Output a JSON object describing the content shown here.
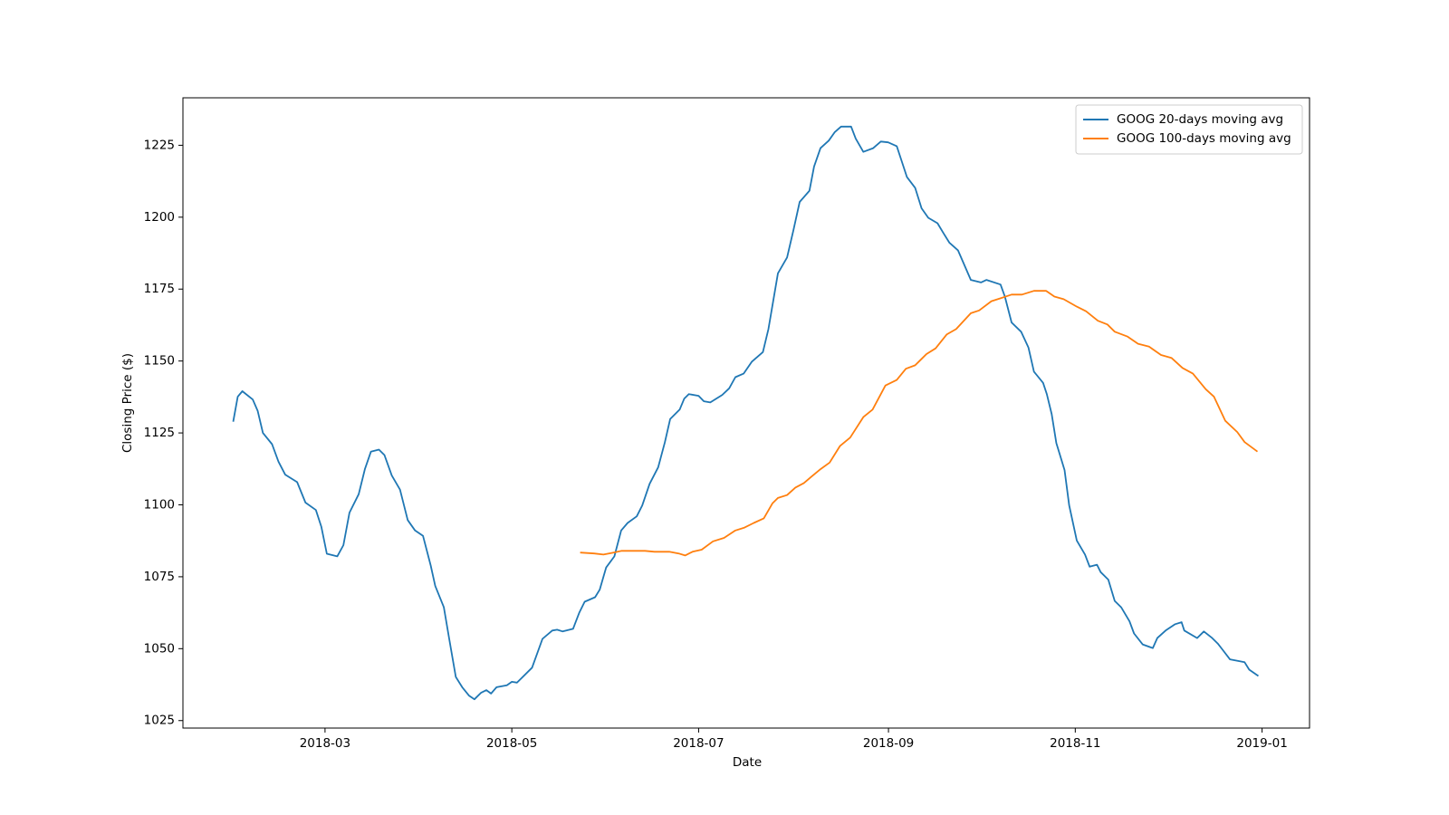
{
  "chart_data": {
    "type": "line",
    "x_label": "Date",
    "y_label": "Closing Price ($)",
    "xlim": [
      12.6,
      380.5
    ],
    "xticks": [
      {
        "value": 59,
        "label": "2018-03"
      },
      {
        "value": 120,
        "label": "2018-05"
      },
      {
        "value": 181,
        "label": "2018-07"
      },
      {
        "value": 243,
        "label": "2018-09"
      },
      {
        "value": 304,
        "label": "2018-11"
      },
      {
        "value": 365,
        "label": "2019-01"
      }
    ],
    "ylim": [
      1022.4,
      1241.5
    ],
    "yticks": [
      1025,
      1050,
      1075,
      1100,
      1125,
      1150,
      1175,
      1200,
      1225
    ],
    "grid": false,
    "legend": "upper right",
    "series": [
      {
        "name": "GOOG 20-days moving avg",
        "color": "#1f77b4",
        "x": [
          29,
          30.5,
          32,
          35.4,
          37,
          38.7,
          41.7,
          43.8,
          46,
          49.9,
          52.6,
          56,
          57.8,
          59.6,
          63,
          65,
          67,
          70,
          72,
          74,
          76.6,
          78.4,
          80.8,
          83.5,
          86,
          88.4,
          91,
          93.5,
          95,
          97.8,
          99.6,
          101.7,
          103.8,
          106,
          107.8,
          110,
          111.7,
          113.2,
          115,
          118.4,
          120,
          121.7,
          123.2,
          126.6,
          130,
          133.2,
          134.8,
          136.6,
          140,
          142,
          143.8,
          147.2,
          148.7,
          150.8,
          153.5,
          155.7,
          157.8,
          160.8,
          162.6,
          165,
          167.8,
          170,
          171.7,
          174.8,
          176.3,
          177.8,
          181,
          182.7,
          184.8,
          188.7,
          191,
          193,
          195.7,
          198.4,
          202,
          203.8,
          206.9,
          209.9,
          212,
          214,
          217.2,
          218.7,
          220.8,
          223.5,
          225.4,
          227.5,
          230.8,
          232.3,
          234.8,
          238,
          240.5,
          242.9,
          245.7,
          249,
          251.7,
          253.8,
          256,
          259,
          260.8,
          262.9,
          265.7,
          269.9,
          273.2,
          275,
          279.6,
          281,
          283.2,
          286.3,
          288.7,
          290.5,
          293.5,
          294.7,
          296.3,
          297.8,
          300.5,
          302,
          304.5,
          307.2,
          308.7,
          311.1,
          312.3,
          314.8,
          316.9,
          319,
          321.7,
          323.2,
          326,
          329.3,
          330.8,
          333.5,
          336.6,
          338.7,
          339.6,
          343.8,
          346,
          348.7,
          350.5,
          352,
          354.5,
          359.3,
          360.8,
          363.8
        ],
        "values": [
          1128.9,
          1137.6,
          1139.5,
          1136.6,
          1132.7,
          1125,
          1121.1,
          1115,
          1110.5,
          1107.9,
          1100.8,
          1098.2,
          1092.4,
          1083,
          1082.1,
          1086,
          1097.3,
          1103.7,
          1112.4,
          1118.5,
          1119.2,
          1117.3,
          1110.2,
          1105.3,
          1094.7,
          1091.1,
          1089.2,
          1078.9,
          1071.8,
          1064.4,
          1053.1,
          1040.2,
          1036.6,
          1033.7,
          1032.4,
          1034.7,
          1035.6,
          1034.4,
          1036.6,
          1037.3,
          1038.5,
          1038.2,
          1039.8,
          1043.4,
          1053.4,
          1056.3,
          1056.6,
          1056,
          1056.9,
          1062.4,
          1066.3,
          1067.9,
          1070.5,
          1078.2,
          1082.1,
          1091.1,
          1093.7,
          1096,
          1099.8,
          1107.3,
          1113.1,
          1121.8,
          1129.8,
          1133.1,
          1136.9,
          1138.5,
          1137.9,
          1136,
          1135.6,
          1138.2,
          1140.5,
          1144.4,
          1145.6,
          1149.8,
          1153.1,
          1161.1,
          1180.5,
          1186,
          1195.6,
          1205.3,
          1209.2,
          1217.6,
          1224,
          1226.6,
          1229.5,
          1231.5,
          1231.5,
          1227.3,
          1222.7,
          1224,
          1226.3,
          1226,
          1224.7,
          1214,
          1210.2,
          1203.1,
          1199.8,
          1197.9,
          1194.7,
          1191.1,
          1188.5,
          1178.2,
          1177.3,
          1178.2,
          1176.6,
          1172.4,
          1163.4,
          1160.2,
          1154.7,
          1146.3,
          1142.4,
          1138.5,
          1131.5,
          1121.5,
          1112.1,
          1099.8,
          1087.6,
          1082.7,
          1078.5,
          1079.2,
          1076.6,
          1074,
          1066.6,
          1064.4,
          1059.5,
          1055.3,
          1051.5,
          1050.2,
          1053.7,
          1056.3,
          1058.5,
          1059.2,
          1056.3,
          1053.7,
          1056,
          1053.7,
          1051.8,
          1049.8,
          1046.3,
          1045.3,
          1042.7,
          1040.5
        ]
      },
      {
        "name": "GOOG 100-days moving avg",
        "color": "#ff7f0e",
        "x": [
          142.3,
          146.9,
          149.9,
          153.2,
          155.9,
          163.5,
          166.6,
          171.4,
          174.5,
          176.6,
          179,
          182,
          185.7,
          189.3,
          193,
          196,
          199,
          202.3,
          205.1,
          206.9,
          209.9,
          212.6,
          215.4,
          217.8,
          220.8,
          223.8,
          227.2,
          230.5,
          234.8,
          237.8,
          242,
          245.7,
          248.7,
          251.7,
          255.4,
          258.4,
          262,
          265.1,
          269.9,
          272.6,
          276.6,
          279.6,
          283.2,
          286.6,
          290.5,
          294.5,
          297.2,
          300.2,
          304.5,
          307.5,
          311.4,
          314.5,
          316.9,
          321.1,
          324.5,
          328.1,
          332,
          335.4,
          339,
          342.4,
          346.6,
          349.3,
          353,
          356.9,
          359.3,
          363.5
        ],
        "values": [
          1083.4,
          1083.1,
          1082.7,
          1083.4,
          1084,
          1084,
          1083.7,
          1083.7,
          1083.1,
          1082.4,
          1083.7,
          1084.4,
          1087.3,
          1088.5,
          1091.1,
          1092.1,
          1093.7,
          1095.3,
          1100.5,
          1102.4,
          1103.4,
          1106,
          1107.6,
          1109.8,
          1112.4,
          1114.7,
          1120.5,
          1123.4,
          1130.5,
          1133.1,
          1141.5,
          1143.4,
          1147.3,
          1148.5,
          1152.4,
          1154.4,
          1159.2,
          1161.1,
          1166.6,
          1167.6,
          1170.8,
          1171.8,
          1173.1,
          1173.1,
          1174.4,
          1174.4,
          1172.4,
          1171.5,
          1168.9,
          1167.3,
          1164,
          1162.7,
          1160.2,
          1158.5,
          1156,
          1155,
          1152.1,
          1151.1,
          1147.6,
          1145.6,
          1140.2,
          1137.6,
          1129.2,
          1125.3,
          1121.8,
          1118.5
        ]
      }
    ]
  }
}
